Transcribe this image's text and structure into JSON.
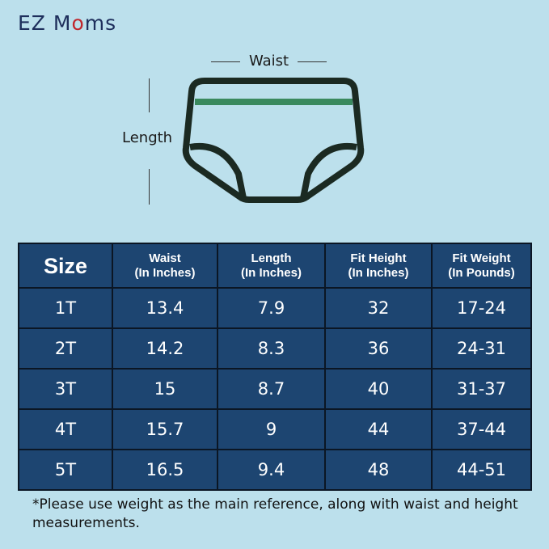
{
  "brand": {
    "logo_text": "EZ Moms",
    "logo_prefix": "EZ M",
    "logo_o": "o",
    "logo_suffix": "ms",
    "accent": "#c0272d"
  },
  "diagram": {
    "waist_label": "Waist",
    "length_label": "Length",
    "outline_color": "#1b2a22",
    "band_color": "#3a8a5e"
  },
  "table": {
    "headers": [
      {
        "line1": "Size",
        "line2": ""
      },
      {
        "line1": "Waist",
        "line2": "(In Inches)"
      },
      {
        "line1": "Length",
        "line2": "(In Inches)"
      },
      {
        "line1": "Fit Height",
        "line2": "(In Inches)"
      },
      {
        "line1": "Fit Weight",
        "line2": "(In Pounds)"
      }
    ],
    "rows": [
      [
        "1T",
        "13.4",
        "7.9",
        "32",
        "17-24"
      ],
      [
        "2T",
        "14.2",
        "8.3",
        "36",
        "24-31"
      ],
      [
        "3T",
        "15",
        "8.7",
        "40",
        "31-37"
      ],
      [
        "4T",
        "15.7",
        "9",
        "44",
        "37-44"
      ],
      [
        "5T",
        "16.5",
        "9.4",
        "48",
        "44-51"
      ]
    ],
    "fill_color": "#1d4571"
  },
  "note": "*Please use weight as the main reference, along with waist and height measurements."
}
